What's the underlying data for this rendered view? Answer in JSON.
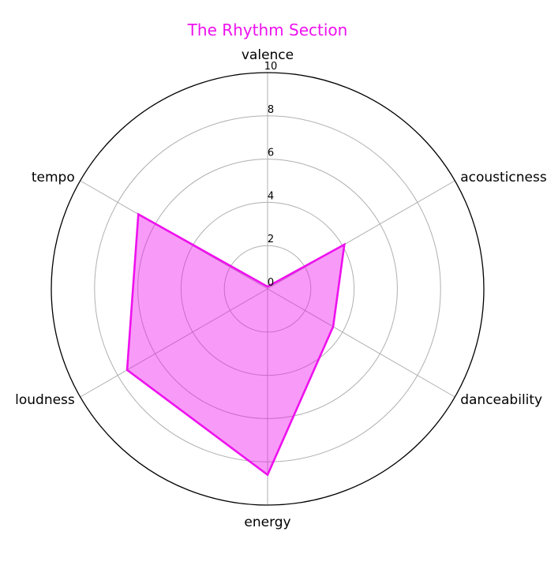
{
  "chart_data": {
    "type": "radar",
    "title": "The Rhythm Section",
    "categories": [
      "valence",
      "acousticness",
      "danceability",
      "energy",
      "loudness",
      "tempo"
    ],
    "series": [
      {
        "values": [
          0.1,
          4.1,
          3.5,
          8.6,
          7.5,
          6.9
        ]
      }
    ],
    "r_ticks": [
      "0",
      "2",
      "4",
      "6",
      "8",
      "10"
    ],
    "rlim": [
      0,
      10
    ],
    "grid": true,
    "colors": {
      "title": "#ee11ee",
      "line": "#ee11ee",
      "fill": "#ee11ee",
      "grid": "#b0b0b0",
      "outer": "#000000"
    }
  }
}
